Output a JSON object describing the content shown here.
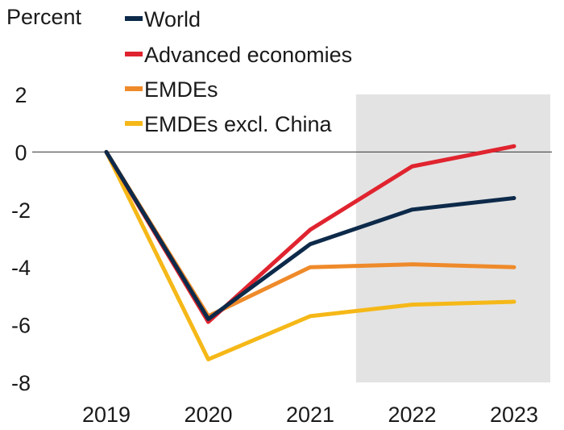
{
  "chart_data": {
    "type": "line",
    "ylabel": "Percent",
    "categories": [
      "2019",
      "2020",
      "2021",
      "2022",
      "2023"
    ],
    "ylim": [
      -8,
      2
    ],
    "yticks": [
      "2",
      "0",
      "-2",
      "-4",
      "-6",
      "-8"
    ],
    "grid": false,
    "legend_position": "top",
    "shaded_region": {
      "from": "2022",
      "to": "2023",
      "color": "#e3e3e3"
    },
    "zero_line": true,
    "series": [
      {
        "name": "World",
        "color": "#0d2a4a",
        "values": [
          0,
          -5.8,
          -3.2,
          -2.0,
          -1.6
        ]
      },
      {
        "name": "Advanced economies",
        "color": "#e0242f",
        "values": [
          0,
          -5.9,
          -2.7,
          -0.5,
          0.2
        ]
      },
      {
        "name": "EMDEs",
        "color": "#ef8a2a",
        "values": [
          0,
          -5.7,
          -4.0,
          -3.9,
          -4.0
        ]
      },
      {
        "name": "EMDEs excl. China",
        "color": "#f5b818",
        "values": [
          0,
          -7.2,
          -5.7,
          -5.3,
          -5.2
        ]
      }
    ]
  }
}
